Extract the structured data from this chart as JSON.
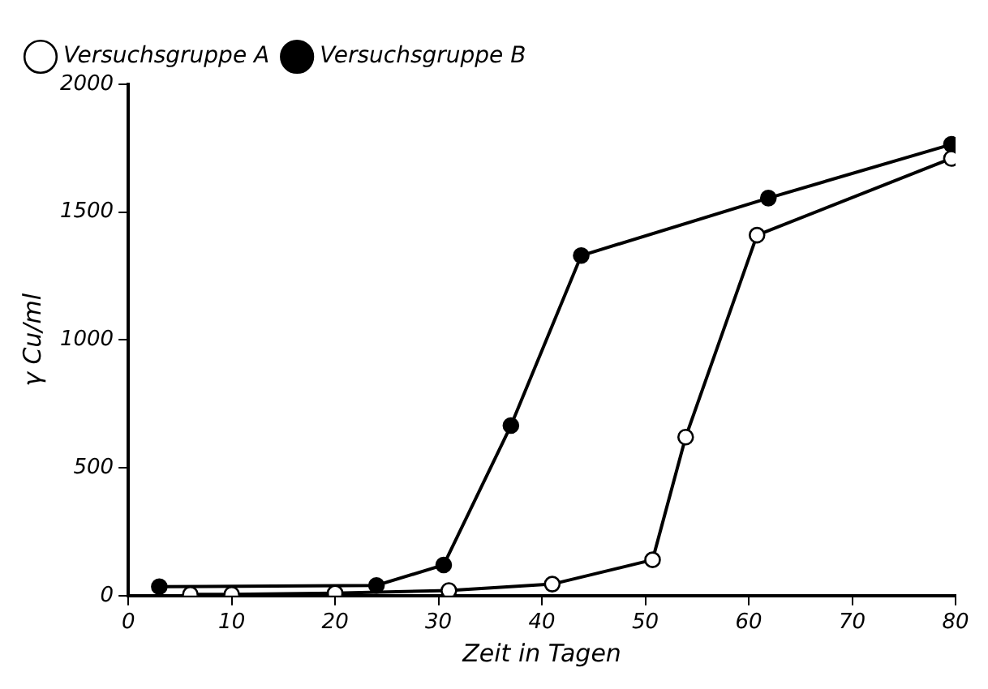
{
  "chart_data": {
    "type": "line",
    "xlabel": "Zeit in Tagen",
    "ylabel": "γ Cu/ml",
    "xlim": [
      0,
      80
    ],
    "xticks": [
      0,
      10,
      20,
      30,
      40,
      50,
      60,
      70,
      80
    ],
    "ylim": [
      0,
      2000
    ],
    "yticks": [
      0,
      500,
      1000,
      1500,
      2000
    ],
    "grid": false,
    "legend": "top left",
    "marker": "circle",
    "line_style": "solid",
    "series": [
      {
        "name": "Versuchsgruppe A",
        "color": "#ffffff",
        "x": [
          6,
          10,
          20,
          31,
          41,
          50.7,
          53.9,
          60.8,
          79.6
        ],
        "values": [
          5,
          5,
          10,
          20,
          45,
          140,
          620,
          1410,
          1710
        ]
      },
      {
        "name": "Versuchsgruppe B",
        "color": "#000000",
        "x": [
          3,
          24,
          30.5,
          37,
          43.8,
          61.9,
          79.6
        ],
        "values": [
          35,
          40,
          120,
          665,
          1330,
          1555,
          1765
        ]
      }
    ]
  }
}
